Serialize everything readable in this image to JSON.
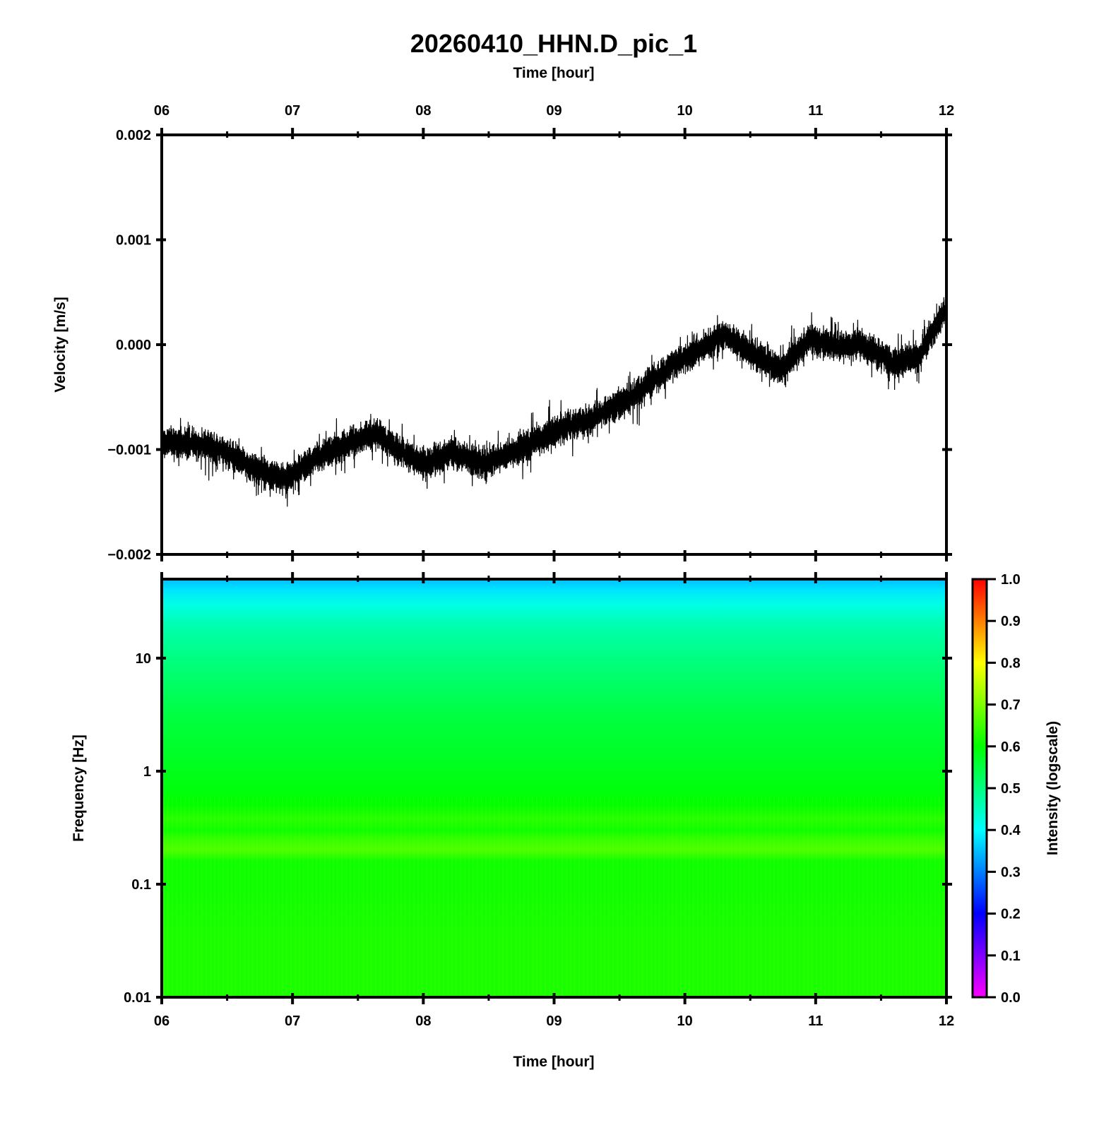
{
  "title": "20260410_HHN.D_pic_1",
  "chart_data": [
    {
      "type": "line",
      "panel": "waveform",
      "xlabel": "Time [hour]",
      "ylabel": "Velocity [m/s]",
      "x_ticks": [
        "06",
        "07",
        "08",
        "09",
        "10",
        "11",
        "12"
      ],
      "y_ticks": [
        "0.002",
        "0.001",
        "0.000",
        "−0.001",
        "−0.002"
      ],
      "xlim": [
        6,
        12
      ],
      "ylim": [
        -0.002,
        0.002
      ],
      "trend": {
        "x": [
          6.0,
          6.3,
          6.5,
          6.7,
          6.95,
          7.2,
          7.5,
          7.65,
          7.8,
          8.0,
          8.2,
          8.45,
          8.7,
          9.0,
          9.3,
          9.6,
          9.9,
          10.1,
          10.3,
          10.55,
          10.75,
          10.95,
          11.15,
          11.35,
          11.6,
          11.8,
          12.0
        ],
        "y": [
          -0.00093,
          -0.00095,
          -0.00103,
          -0.00118,
          -0.00128,
          -0.00107,
          -0.0009,
          -0.00085,
          -0.001,
          -0.00115,
          -0.00103,
          -0.00113,
          -0.00102,
          -0.00083,
          -0.0007,
          -0.0005,
          -0.0002,
          -5e-05,
          0.0001,
          -0.00012,
          -0.00023,
          5e-05,
          -2e-05,
          0.0,
          -0.00018,
          -0.0001,
          0.00035
        ]
      },
      "noise_amplitude": 0.00018,
      "line_color": "#000000"
    },
    {
      "type": "heatmap",
      "panel": "spectrogram",
      "xlabel": "Time [hour]",
      "ylabel": "Frequency [Hz]",
      "x_ticks": [
        "06",
        "07",
        "08",
        "09",
        "10",
        "11",
        "12"
      ],
      "y_ticks": [
        "10",
        "1",
        "0.1",
        "0.01"
      ],
      "xlim": [
        6,
        12
      ],
      "ylim": [
        0.01,
        50
      ],
      "y_scale": "log",
      "intensity_profile": {
        "freq_hz": [
          0.01,
          0.03,
          0.1,
          0.16,
          0.2,
          0.25,
          0.3,
          0.38,
          0.5,
          1,
          3,
          10,
          20,
          30,
          40,
          50
        ],
        "intensity": [
          0.62,
          0.62,
          0.61,
          0.61,
          0.66,
          0.64,
          0.61,
          0.63,
          0.6,
          0.58,
          0.55,
          0.5,
          0.46,
          0.42,
          0.38,
          0.35
        ]
      },
      "colorbar": {
        "label": "Intensity (logscale)",
        "ticks": [
          "1.0",
          "0.9",
          "0.8",
          "0.7",
          "0.6",
          "0.5",
          "0.4",
          "0.3",
          "0.2",
          "0.1",
          "0.0"
        ],
        "range": [
          0,
          1
        ],
        "colormap": [
          "#ff00ff",
          "#0000ff",
          "#00ffff",
          "#00ff00",
          "#ffff00",
          "#ff0000"
        ]
      }
    }
  ]
}
